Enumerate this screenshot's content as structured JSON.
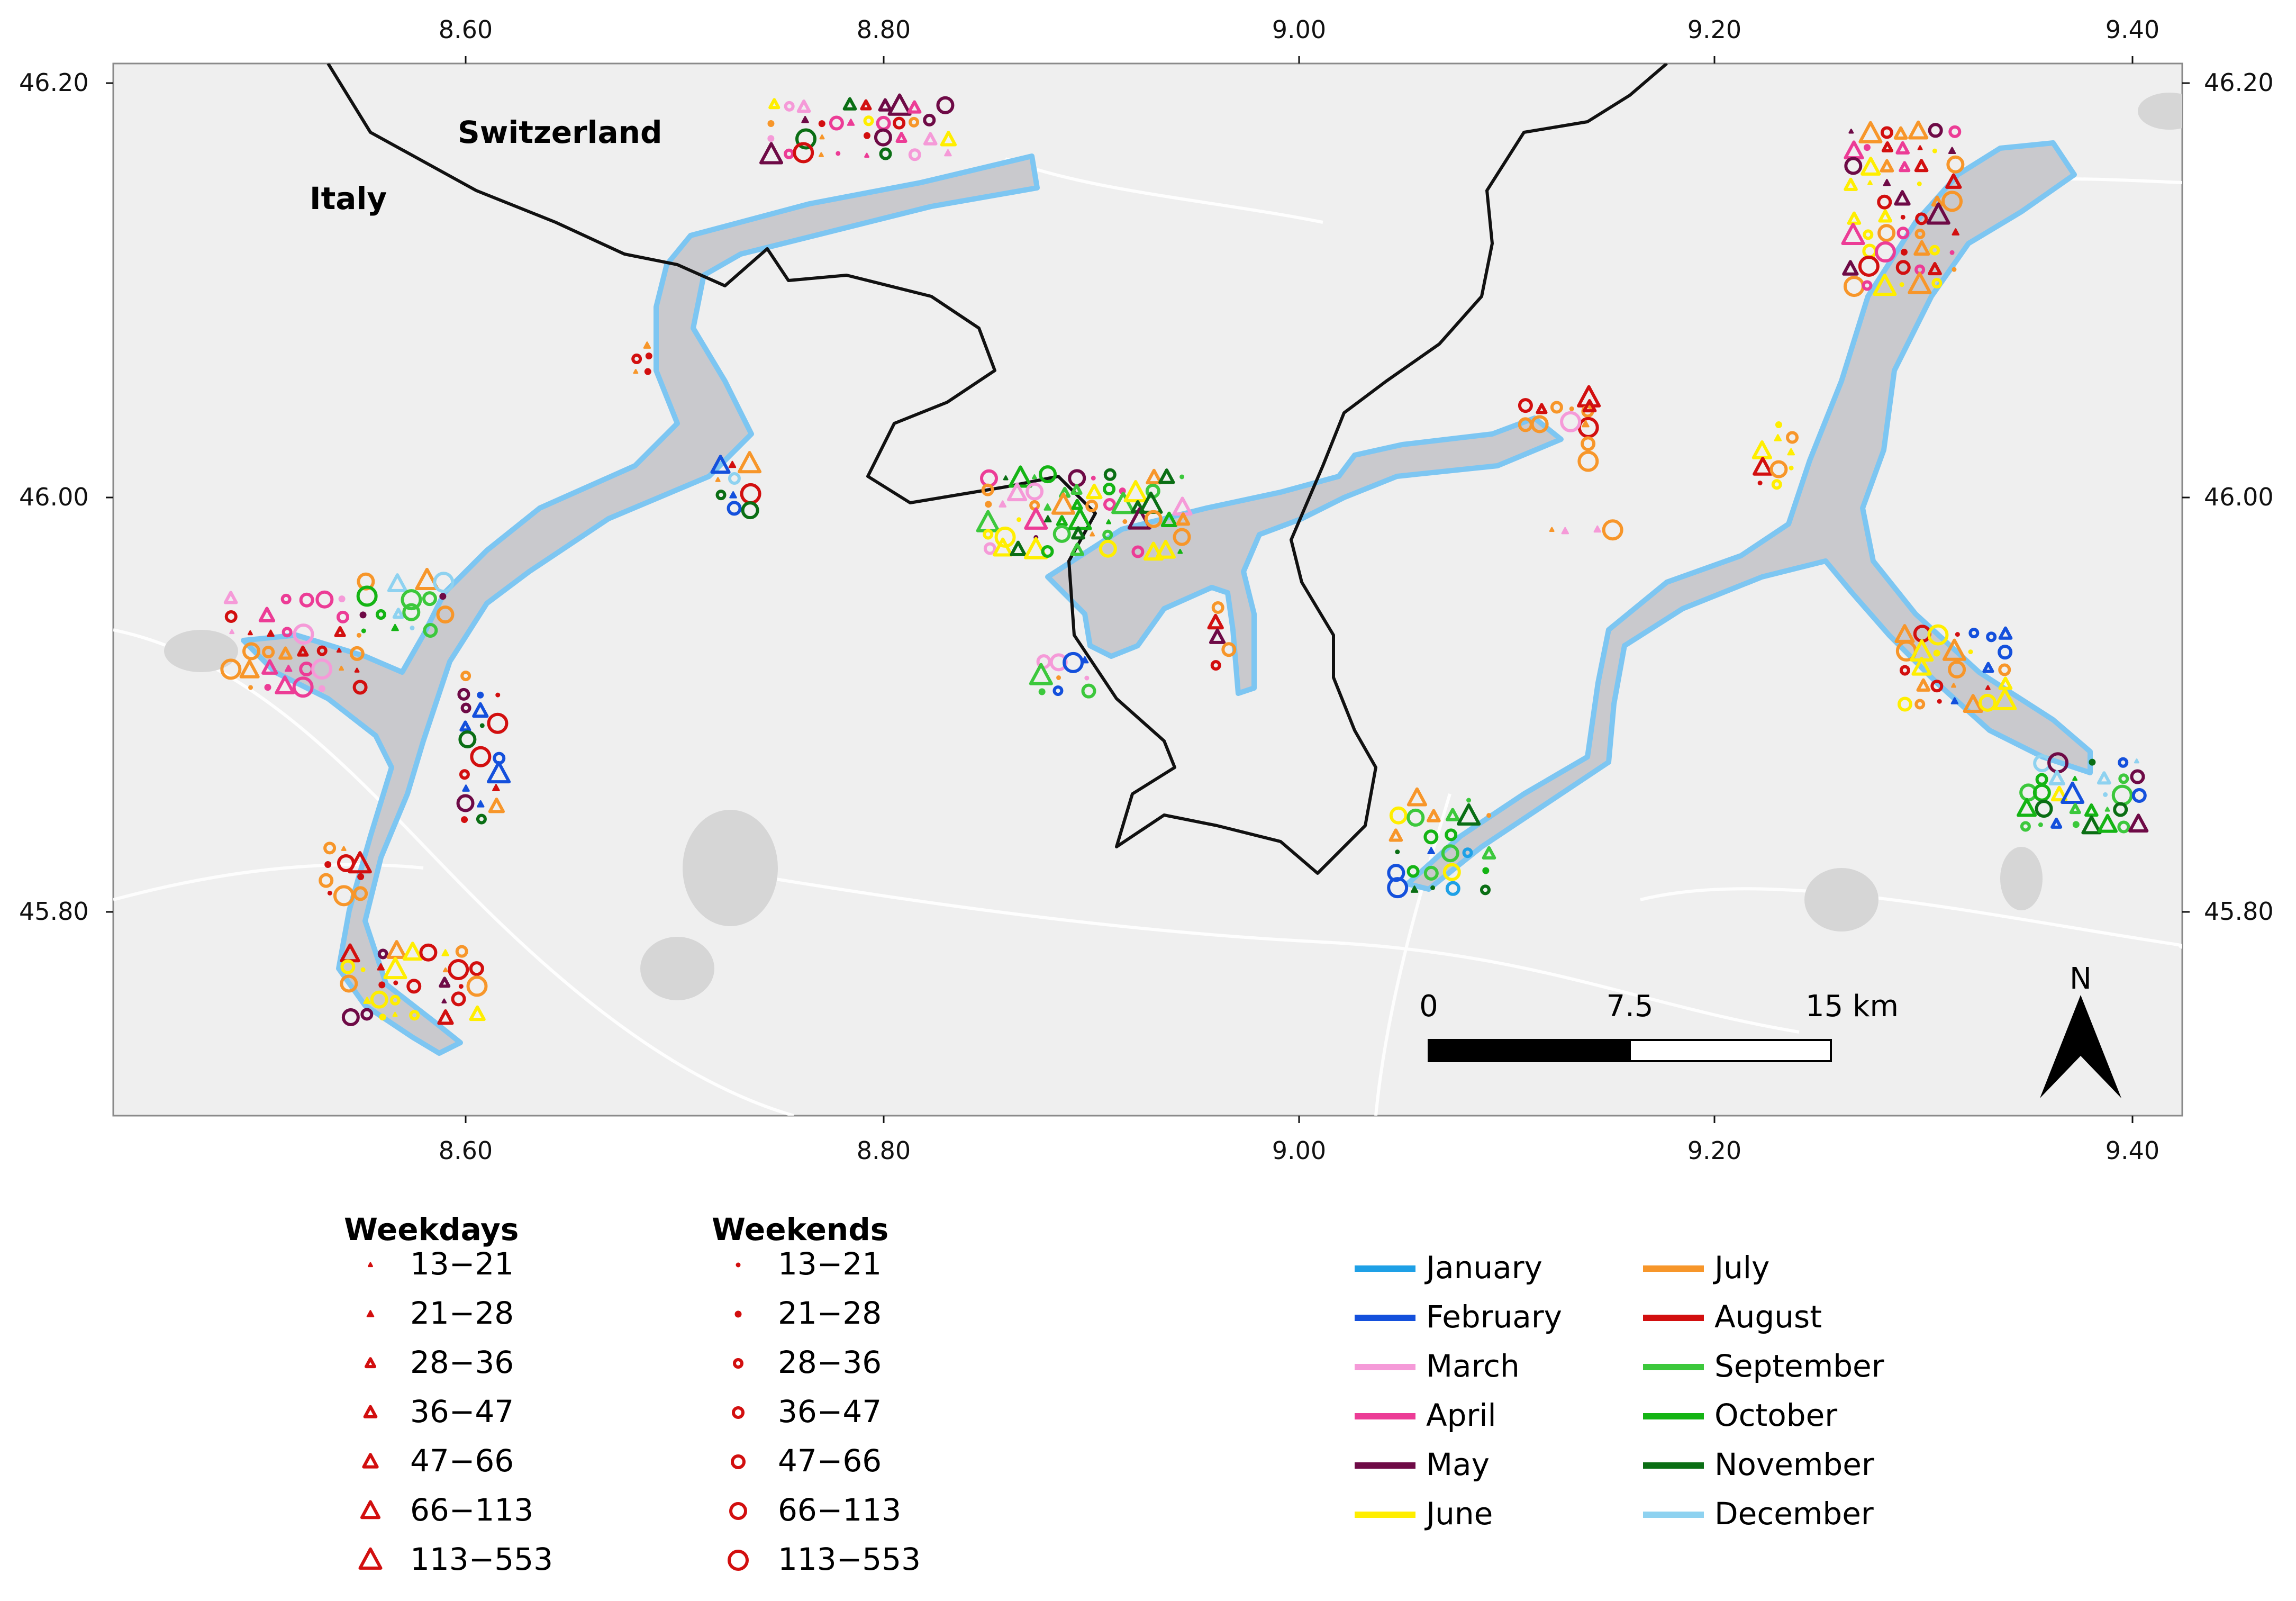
{
  "map": {
    "axes": {
      "x_ticks": [
        "8.60",
        "8.80",
        "9.00",
        "9.20",
        "9.40"
      ],
      "y_ticks": [
        "46.20",
        "46.00",
        "45.80"
      ]
    },
    "country_labels": [
      "Switzerland",
      "Italy"
    ],
    "scale_bar": {
      "labels": [
        "0",
        "7.5",
        "15 km"
      ]
    },
    "north_arrow": {
      "label": "N"
    }
  },
  "legend": {
    "weekdays": {
      "title": "Weekdays",
      "symbol": "triangle",
      "classes": [
        "13−21",
        "21−28",
        "28−36",
        "36−47",
        "47−66",
        "66−113",
        "113−553"
      ]
    },
    "weekends": {
      "title": "Weekends",
      "symbol": "circle",
      "classes": [
        "13−21",
        "21−28",
        "28−36",
        "36−47",
        "47−66",
        "66−113",
        "113−553"
      ]
    },
    "months": [
      {
        "label": "January",
        "color": "#1ea0e6"
      },
      {
        "label": "February",
        "color": "#1450dc"
      },
      {
        "label": "March",
        "color": "#f59ad8"
      },
      {
        "label": "April",
        "color": "#ec3c96"
      },
      {
        "label": "May",
        "color": "#6e0a46"
      },
      {
        "label": "June",
        "color": "#ffee00"
      },
      {
        "label": "July",
        "color": "#f7962a"
      },
      {
        "label": "August",
        "color": "#d20f0f"
      },
      {
        "label": "September",
        "color": "#3cc83c"
      },
      {
        "label": "October",
        "color": "#14b414"
      },
      {
        "label": "November",
        "color": "#0a6e14"
      },
      {
        "label": "December",
        "color": "#8ed2f0"
      }
    ]
  }
}
